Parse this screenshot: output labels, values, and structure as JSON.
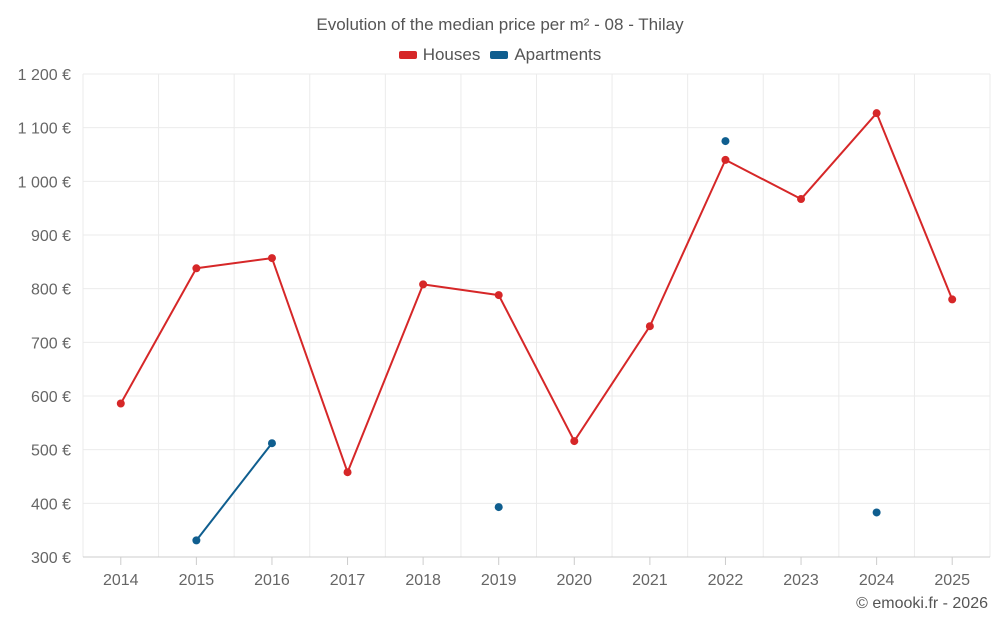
{
  "chart_data": {
    "type": "line",
    "title": "Evolution of the median price per m² - 08 - Thilay",
    "categories": [
      "2014",
      "2015",
      "2016",
      "2017",
      "2018",
      "2019",
      "2020",
      "2021",
      "2022",
      "2023",
      "2024",
      "2025"
    ],
    "series": [
      {
        "name": "Houses",
        "color": "#d62728",
        "values": [
          586,
          838,
          857,
          458,
          808,
          788,
          516,
          730,
          1040,
          967,
          1127,
          780
        ]
      },
      {
        "name": "Apartments",
        "color": "#0f5e8f",
        "values": [
          null,
          331,
          512,
          null,
          null,
          393,
          null,
          null,
          1075,
          null,
          383,
          null
        ]
      }
    ],
    "y_ticks": [
      "300 €",
      "400 €",
      "500 €",
      "600 €",
      "700 €",
      "800 €",
      "900 €",
      "1 000 €",
      "1 100 €",
      "1 200 €"
    ],
    "ylim": [
      300,
      1200
    ],
    "grid": true,
    "legend_position": "top-center"
  },
  "credit": "© emooki.fr - 2026"
}
